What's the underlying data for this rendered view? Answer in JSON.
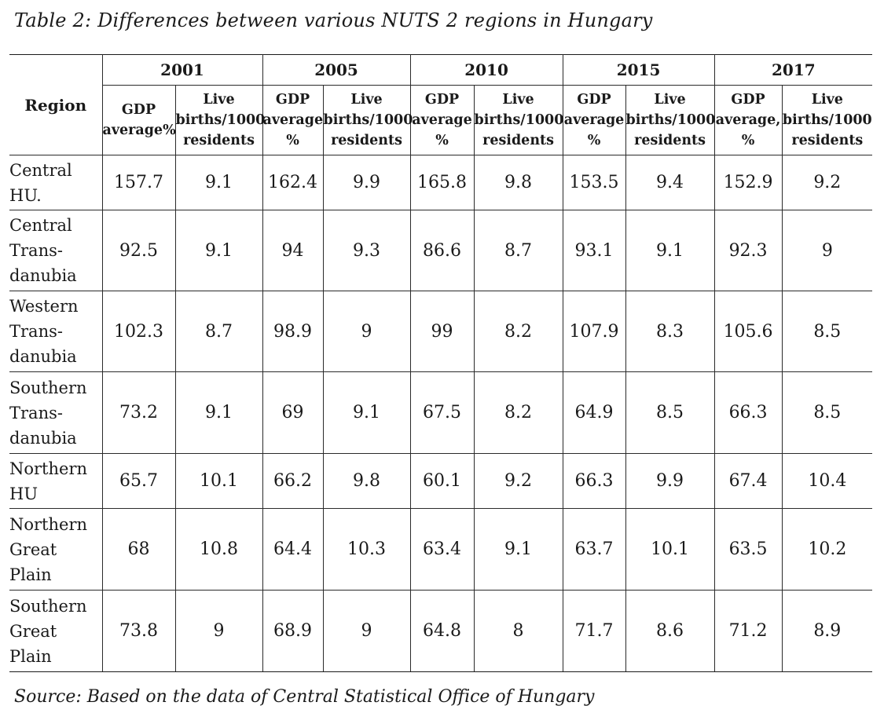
{
  "caption": "Table 2: Differences between various NUTS 2 regions in Hungary",
  "source": "Source: Based on the data of Central Statistical Office of Hungary",
  "table": {
    "region_header": "Region",
    "years": [
      "2001",
      "2005",
      "2010",
      "2015",
      "2017"
    ],
    "subheaders": [
      "GDP\naverage%",
      "Live\nbirths/1000\nresidents",
      "GDP\naverage\n%",
      "Live\nbirths/1000\nresidents",
      "GDP\naverage\n%",
      "Live\nbirths/1000\nresidents",
      "GDP\naverage\n%",
      "Live\nbirths/1000\nresidents",
      "GDP\naverage,\n%",
      "Live\nbirths/1000\nresidents"
    ],
    "rows": [
      {
        "region": "Central\nHU.",
        "values": [
          "157.7",
          "9.1",
          "162.4",
          "9.9",
          "165.8",
          "9.8",
          "153.5",
          "9.4",
          "152.9",
          "9.2"
        ]
      },
      {
        "region": "Central\nTrans-\ndanubia",
        "values": [
          "92.5",
          "9.1",
          "94",
          "9.3",
          "86.6",
          "8.7",
          "93.1",
          "9.1",
          "92.3",
          "9"
        ]
      },
      {
        "region": "Western\nTrans-\ndanubia",
        "values": [
          "102.3",
          "8.7",
          "98.9",
          "9",
          "99",
          "8.2",
          "107.9",
          "8.3",
          "105.6",
          "8.5"
        ]
      },
      {
        "region": "Southern\nTrans-\ndanubia",
        "values": [
          "73.2",
          "9.1",
          "69",
          "9.1",
          "67.5",
          "8.2",
          "64.9",
          "8.5",
          "66.3",
          "8.5"
        ]
      },
      {
        "region": "Northern\nHU",
        "values": [
          "65.7",
          "10.1",
          "66.2",
          "9.8",
          "60.1",
          "9.2",
          "66.3",
          "9.9",
          "67.4",
          "10.4"
        ]
      },
      {
        "region": "Northern\nGreat\nPlain",
        "values": [
          "68",
          "10.8",
          "64.4",
          "10.3",
          "63.4",
          "9.1",
          "63.7",
          "10.1",
          "63.5",
          "10.2"
        ]
      },
      {
        "region": "Southern\nGreat\nPlain",
        "values": [
          "73.8",
          "9",
          "68.9",
          "9",
          "64.8",
          "8",
          "71.7",
          "8.6",
          "71.2",
          "8.9"
        ]
      }
    ]
  }
}
